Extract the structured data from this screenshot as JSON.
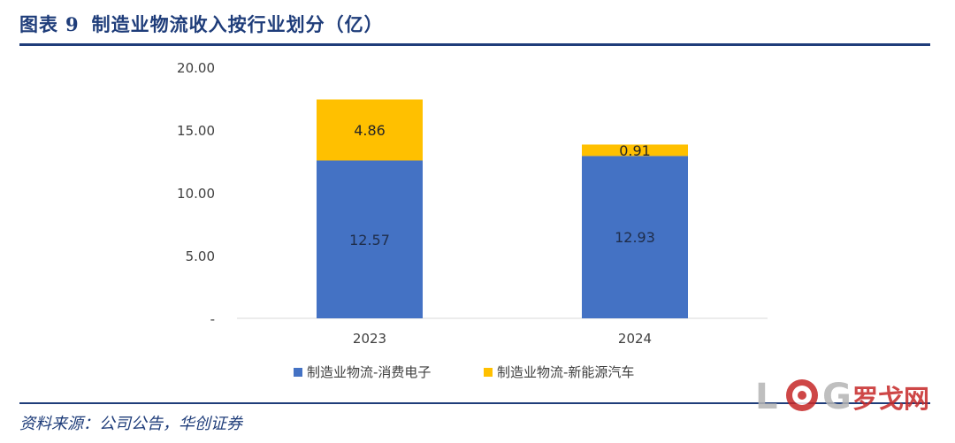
{
  "header": {
    "label": "图表",
    "number": "9",
    "title": "制造业物流收入按行业划分（亿）"
  },
  "source": "资料来源：公司公告，华创证券",
  "watermark": {
    "text": "罗戈网",
    "letters": [
      "L",
      "G"
    ]
  },
  "chart_data": {
    "type": "bar",
    "stacked": true,
    "categories": [
      "2023",
      "2024"
    ],
    "series": [
      {
        "name": "制造业物流-消费电子",
        "values": [
          12.57,
          12.93
        ],
        "labels": [
          "12.57",
          "12.93"
        ],
        "color": "#4472c4"
      },
      {
        "name": "制造业物流-新能源汽车",
        "values": [
          4.86,
          0.91
        ],
        "labels": [
          "4.86",
          "0.91"
        ],
        "color": "#ffc000"
      }
    ],
    "ylim": [
      0,
      20
    ],
    "yticks": [
      0,
      5,
      10,
      15,
      20
    ],
    "ytick_labels": [
      "-",
      "5.00",
      "10.00",
      "15.00",
      "20.00"
    ],
    "grid": false,
    "legend_position": "bottom"
  }
}
